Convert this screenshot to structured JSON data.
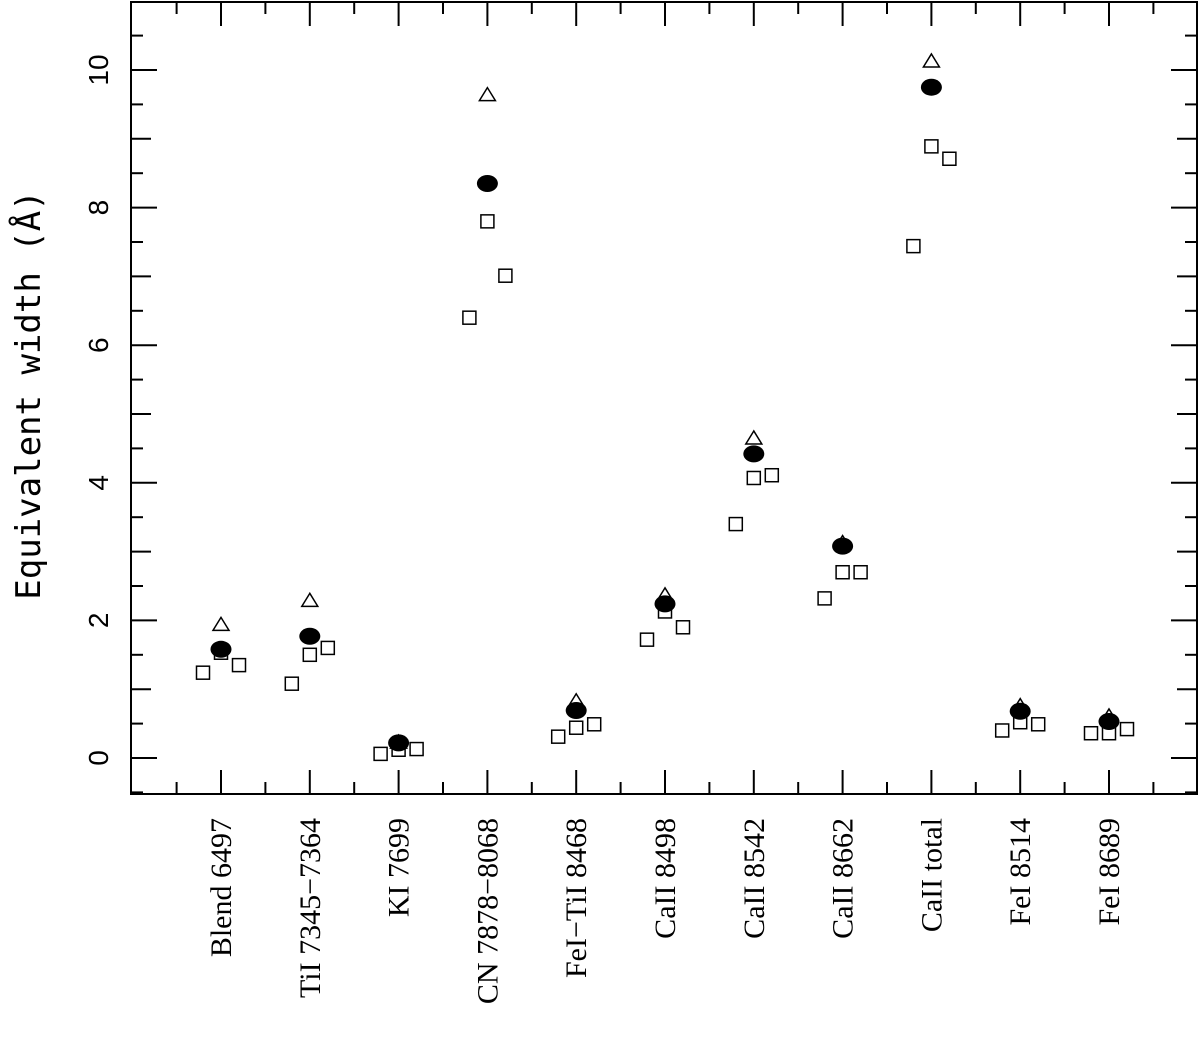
{
  "chart_data": {
    "type": "scatter",
    "ylabel": "Equivalent width (Å)",
    "xlabel": "",
    "ylim": [
      -0.5,
      10.9
    ],
    "yticks_major": [
      0,
      2,
      4,
      6,
      8,
      10
    ],
    "categories": [
      "Blend 6497",
      "TiI 7345−7364",
      "KI 7699",
      "CN 7878−8068",
      "FeI−TiI 8468",
      "CaII 8498",
      "CaII 8542",
      "CaII 8662",
      "CaII total",
      "FeI 8514",
      "FeI 8689"
    ],
    "series": [
      {
        "marker": "filled-circle",
        "values": [
          1.58,
          1.77,
          0.22,
          8.35,
          0.69,
          2.24,
          4.42,
          3.08,
          9.75,
          0.68,
          0.53
        ]
      },
      {
        "marker": "open-triangle",
        "values": [
          1.93,
          2.28,
          0.22,
          9.63,
          0.82,
          2.36,
          4.64,
          3.12,
          10.12,
          0.75,
          0.6
        ]
      },
      {
        "marker": "open-square",
        "groups": [
          [
            1.24,
            1.53,
            1.35
          ],
          [
            1.08,
            1.5,
            1.6
          ],
          [
            0.06,
            0.12,
            0.13
          ],
          [
            6.4,
            7.8,
            7.01
          ],
          [
            0.31,
            0.44,
            0.49
          ],
          [
            1.72,
            2.13,
            1.9
          ],
          [
            3.4,
            4.07,
            4.11
          ],
          [
            2.32,
            2.7,
            2.7
          ],
          [
            7.44,
            8.89,
            8.71
          ],
          [
            0.4,
            0.52,
            0.49
          ],
          [
            0.36,
            0.36,
            0.42
          ]
        ]
      }
    ],
    "grid": false,
    "legend": "none"
  }
}
